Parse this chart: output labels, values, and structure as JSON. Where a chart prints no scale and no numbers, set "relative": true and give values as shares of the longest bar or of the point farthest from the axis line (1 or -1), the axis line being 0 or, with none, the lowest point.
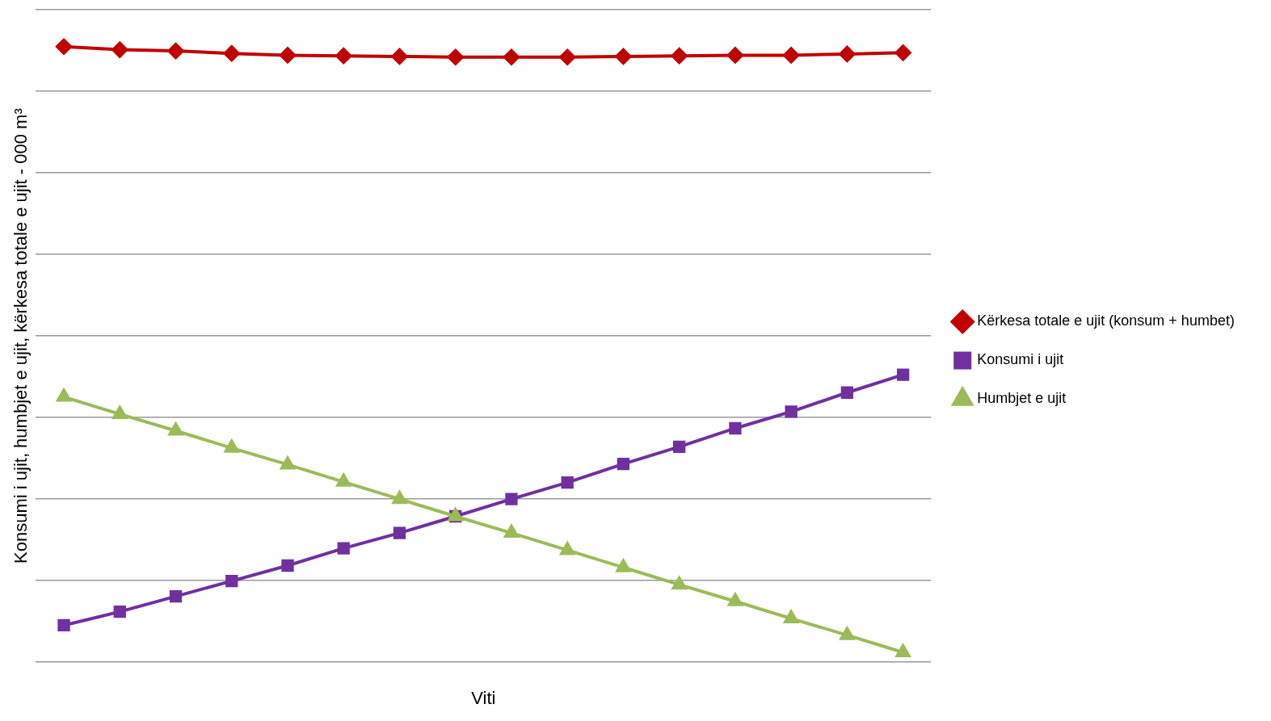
{
  "chart_data": {
    "type": "line",
    "relative": true,
    "xlabel": "Viti",
    "ylabel": "Konsumi i ujit, humbjet e ujit, kërkesa totale e ujit - 000 m³",
    "categories": [
      null,
      null,
      null,
      null,
      null,
      null,
      null,
      null,
      null,
      null,
      null,
      null,
      null,
      null,
      null,
      null
    ],
    "grid": "y",
    "legend": "right",
    "line_style": "solid",
    "series": [
      {
        "name": "Kërkesa totale e ujit (konsum + humbet)",
        "color": "#c00000",
        "marker": "diamond",
        "values": [
          1,
          0.995,
          0.993,
          0.989,
          0.986,
          0.985,
          0.984,
          0.983,
          0.983,
          0.983,
          0.984,
          0.985,
          0.986,
          0.986,
          0.988,
          0.99
        ]
      },
      {
        "name": "Konsumi i ujit",
        "color": "#7030a0",
        "marker": "square",
        "values": [
          0.06,
          0.082,
          0.107,
          0.132,
          0.157,
          0.185,
          0.21,
          0.237,
          0.265,
          0.292,
          0.322,
          0.35,
          0.38,
          0.407,
          0.438,
          0.467
        ]
      },
      {
        "name": "Humbjet e ujit",
        "color": "#9bbb59",
        "marker": "triangle",
        "values": [
          0.431,
          0.403,
          0.376,
          0.348,
          0.321,
          0.293,
          0.265,
          0.237,
          0.21,
          0.182,
          0.154,
          0.126,
          0.099,
          0.071,
          0.044,
          0.016
        ]
      }
    ]
  }
}
